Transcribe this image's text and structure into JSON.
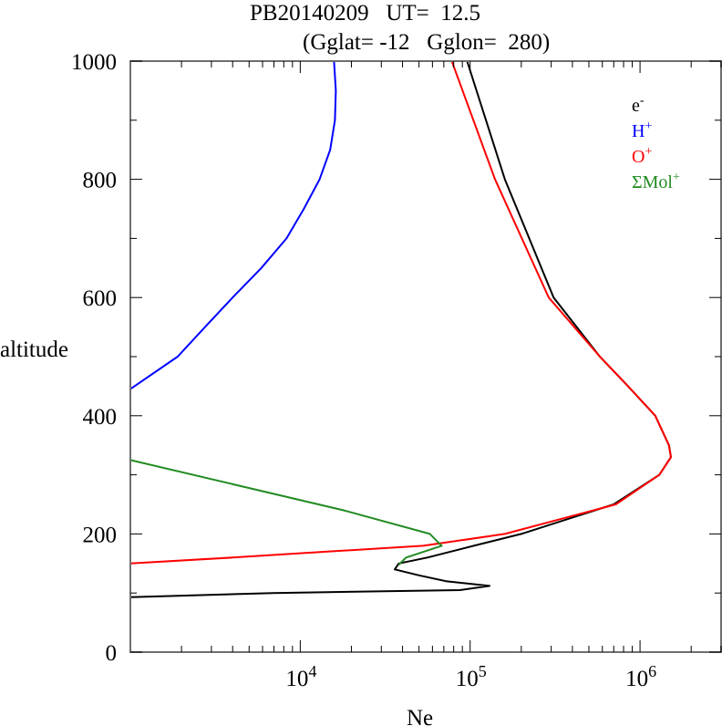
{
  "chart_data": {
    "type": "line",
    "title": "PB20140209   UT=  12.5",
    "subtitle": "(Gglat= -12   Gglon=  280)",
    "xlabel": "Ne",
    "ylabel": "altitude",
    "xscale": "log",
    "xlim": [
      1000,
      3000000
    ],
    "ylim": [
      0,
      1000
    ],
    "grid": false,
    "legend_position": "top-right",
    "yticks": [
      {
        "value": 0,
        "label": "0"
      },
      {
        "value": 200,
        "label": "200"
      },
      {
        "value": 400,
        "label": "400"
      },
      {
        "value": 600,
        "label": "600"
      },
      {
        "value": 800,
        "label": "800"
      },
      {
        "value": 1000,
        "label": "1000"
      }
    ],
    "xticks": [
      {
        "value": 10000,
        "base": "10",
        "exp": "4"
      },
      {
        "value": 100000,
        "base": "10",
        "exp": "5"
      },
      {
        "value": 1000000,
        "base": "10",
        "exp": "6"
      }
    ],
    "series": [
      {
        "name": "e-",
        "label": "e",
        "sup": "-",
        "color": "#000000",
        "points": [
          [
            96000,
            1000
          ],
          [
            160000,
            800
          ],
          [
            310000,
            600
          ],
          [
            580000,
            500
          ],
          [
            850000,
            450
          ],
          [
            1230000,
            400
          ],
          [
            1480000,
            350
          ],
          [
            1520000,
            330
          ],
          [
            1300000,
            300
          ],
          [
            700000,
            250
          ],
          [
            200000,
            200
          ],
          [
            105000,
            180
          ],
          [
            56000,
            160
          ],
          [
            38000,
            150
          ],
          [
            36000,
            140
          ],
          [
            50000,
            130
          ],
          [
            72000,
            120
          ],
          [
            130000,
            112
          ],
          [
            87000,
            105
          ],
          [
            6900,
            100
          ],
          [
            1000,
            93
          ]
        ]
      },
      {
        "name": "H+",
        "label": "H",
        "sup": "+",
        "color": "#0000ff",
        "points": [
          [
            15800,
            1000
          ],
          [
            16200,
            950
          ],
          [
            16000,
            900
          ],
          [
            15000,
            850
          ],
          [
            13000,
            800
          ],
          [
            10500,
            750
          ],
          [
            8300,
            700
          ],
          [
            5900,
            650
          ],
          [
            4000,
            600
          ],
          [
            2750,
            550
          ],
          [
            1900,
            500
          ],
          [
            1000,
            445
          ]
        ]
      },
      {
        "name": "O+",
        "label": "O",
        "sup": "+",
        "color": "#ff0000",
        "points": [
          [
            78000,
            1000
          ],
          [
            140000,
            800
          ],
          [
            290000,
            600
          ],
          [
            580000,
            500
          ],
          [
            850000,
            450
          ],
          [
            1230000,
            400
          ],
          [
            1480000,
            350
          ],
          [
            1520000,
            330
          ],
          [
            1300000,
            300
          ],
          [
            720000,
            250
          ],
          [
            160000,
            200
          ],
          [
            53000,
            180
          ],
          [
            14500,
            170
          ],
          [
            4000,
            160
          ],
          [
            1000,
            150
          ]
        ]
      },
      {
        "name": "ΣMol+",
        "label": "ΣMol",
        "sup": "+",
        "color": "#228b22",
        "points": [
          [
            1000,
            325
          ],
          [
            18000,
            240
          ],
          [
            58000,
            200
          ],
          [
            68000,
            180
          ],
          [
            42000,
            160
          ],
          [
            38000,
            148
          ]
        ]
      }
    ]
  }
}
